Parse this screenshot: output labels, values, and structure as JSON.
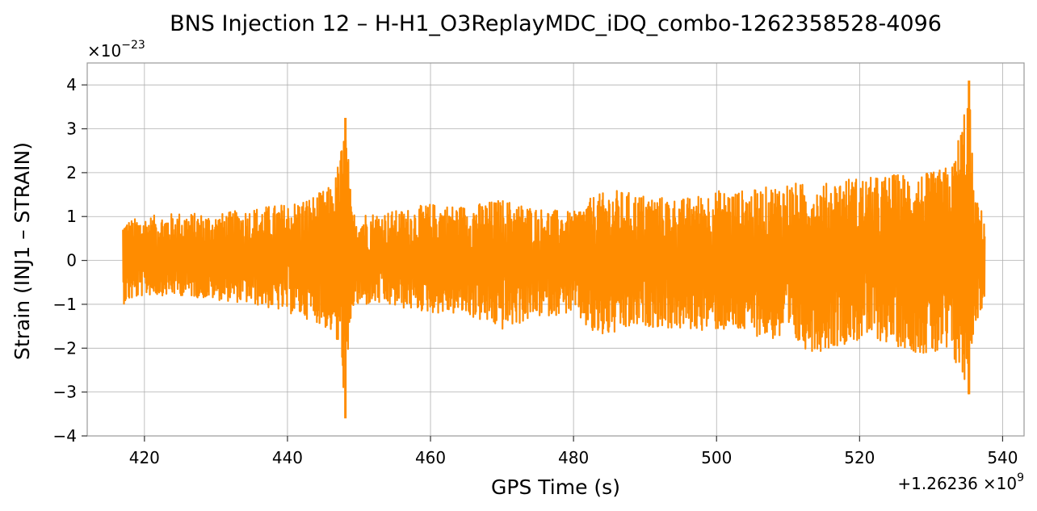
{
  "chart_data": {
    "type": "line",
    "title": "BNS Injection 12 – H-H1_O3ReplayMDC_iDQ_combo-1262358528-4096",
    "xlabel": "GPS Time (s)",
    "ylabel": "Strain (INJ1 – STRAIN)",
    "x_offset_label": "+1.26236",
    "x_offset_exp_base": "×10",
    "x_offset_exp": "9",
    "y_scale_base": "×10",
    "y_scale_exp": "−23",
    "xlim": [
      412,
      543
    ],
    "ylim": [
      -4,
      4.5
    ],
    "x_range_data": [
      417,
      537.5
    ],
    "xticks": [
      420,
      440,
      460,
      480,
      500,
      520,
      540
    ],
    "xtick_labels": [
      "420",
      "440",
      "460",
      "480",
      "500",
      "520",
      "540"
    ],
    "yticks": [
      4,
      3,
      2,
      1,
      0,
      -1,
      -2,
      -3,
      -4
    ],
    "ytick_labels": [
      "4",
      "3",
      "2",
      "1",
      "0",
      "−1",
      "−2",
      "−3",
      "−4"
    ],
    "grid": true,
    "series": [
      {
        "color": "#ff8c00",
        "envelope": {
          "x": [
            417,
            420,
            425,
            430,
            435,
            440,
            444,
            446.5,
            447.5,
            448.2,
            449,
            452,
            456,
            460,
            465,
            470,
            475,
            480,
            483,
            486,
            490,
            495,
            500,
            505,
            510,
            514,
            518,
            522,
            526,
            530,
            533,
            535.3,
            536,
            537.5
          ],
          "upper": [
            0.9,
            1.0,
            1.1,
            1.05,
            1.2,
            1.3,
            1.5,
            1.75,
            2.6,
            3.2,
            1.1,
            1.1,
            1.15,
            1.3,
            1.25,
            1.4,
            1.2,
            1.1,
            1.5,
            1.6,
            1.5,
            1.4,
            1.6,
            1.6,
            1.8,
            1.7,
            1.9,
            1.9,
            2.0,
            2.0,
            2.2,
            4.1,
            1.5,
            1.0
          ],
          "lower": [
            -1.0,
            -0.8,
            -0.8,
            -0.9,
            -1.0,
            -1.2,
            -1.4,
            -1.7,
            -2.4,
            -3.6,
            -1.1,
            -1.0,
            -1.1,
            -1.2,
            -1.25,
            -1.6,
            -1.3,
            -1.2,
            -1.8,
            -1.7,
            -1.5,
            -1.6,
            -1.6,
            -1.7,
            -1.9,
            -2.1,
            -1.9,
            -1.8,
            -2.0,
            -2.2,
            -2.3,
            -3.1,
            -1.5,
            -1.0
          ]
        },
        "peaks": [
          {
            "x": 448.1,
            "y": 3.25
          },
          {
            "x": 448.1,
            "y": -3.6
          },
          {
            "x": 535.3,
            "y": 4.1
          },
          {
            "x": 535.3,
            "y": -3.05
          }
        ]
      }
    ]
  }
}
